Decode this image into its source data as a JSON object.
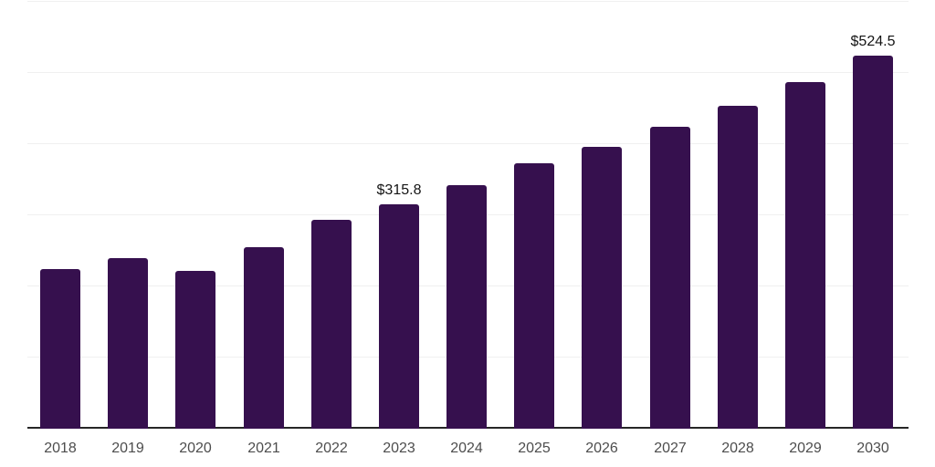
{
  "chart_data": {
    "type": "bar",
    "title": "",
    "xlabel": "",
    "ylabel": "",
    "categories": [
      "2018",
      "2019",
      "2020",
      "2021",
      "2022",
      "2023",
      "2024",
      "2025",
      "2026",
      "2027",
      "2028",
      "2029",
      "2030"
    ],
    "values": [
      224.4,
      239.7,
      221.8,
      255.1,
      293.6,
      315.8,
      342.3,
      373.7,
      396.2,
      424.4,
      453.8,
      487.2,
      524.5
    ],
    "point_labels": [
      "",
      "",
      "",
      "",
      "",
      "$315.8",
      "",
      "",
      "",
      "",
      "",
      "",
      "$524.5"
    ],
    "ylim": [
      0,
      600
    ],
    "gridline_values": [
      100,
      200,
      300,
      400,
      500,
      600
    ],
    "grid": "horizontal",
    "legend": "none",
    "colors": {
      "bar": "#36104e",
      "background": "#ffffff",
      "gridline": "#f0f0f0",
      "axis_line": "#262626",
      "tick_label": "#4d4d4d",
      "value_label": "#141414"
    }
  }
}
